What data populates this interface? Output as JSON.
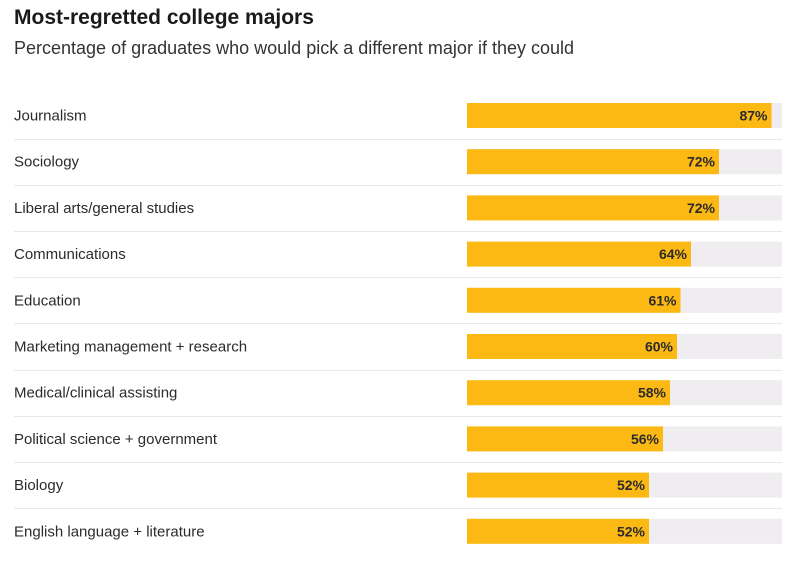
{
  "chart_data": {
    "type": "bar",
    "orientation": "horizontal",
    "title": "Most-regretted college majors",
    "subtitle": "Percentage of graduates who would pick a different major if they could",
    "categories": [
      "Journalism",
      "Sociology",
      "Liberal arts/general studies",
      "Communications",
      "Education",
      "Marketing management + research",
      "Medical/clinical assisting",
      "Political science + government",
      "Biology",
      "English language + literature"
    ],
    "values": [
      87,
      72,
      72,
      64,
      61,
      60,
      58,
      56,
      52,
      52
    ],
    "value_labels": [
      "87%",
      "72%",
      "72%",
      "64%",
      "61%",
      "60%",
      "58%",
      "56%",
      "52%",
      "52%"
    ],
    "unit": "%",
    "xlim": [
      0,
      90
    ],
    "xlabel": "",
    "ylabel": "",
    "grid": false,
    "legend": "none",
    "colors": {
      "bar": "#FDB913",
      "track": "#EFEDF0",
      "divider": "#E8E8E8",
      "text": "#2B2B2B"
    }
  }
}
